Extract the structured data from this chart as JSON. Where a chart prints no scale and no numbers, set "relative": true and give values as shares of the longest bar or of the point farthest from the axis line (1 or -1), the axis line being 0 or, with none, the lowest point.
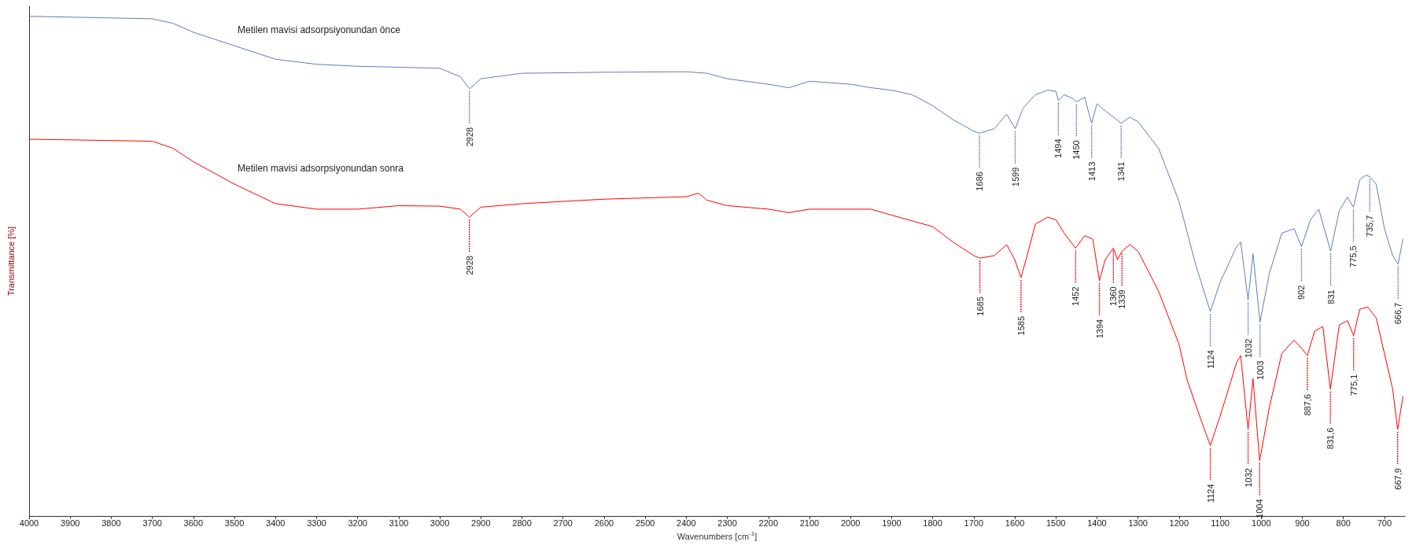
{
  "chart_data": {
    "type": "line",
    "relative": true,
    "xlabel": "Wavenumbers [cm$^{-1}$]",
    "ylabel": "Transmittance [%]",
    "xlim": [
      4000,
      650
    ],
    "xticks": [
      4000,
      3900,
      3800,
      3700,
      3600,
      3500,
      3400,
      3300,
      3200,
      3100,
      3000,
      2900,
      2800,
      2700,
      2600,
      2500,
      2400,
      2300,
      2200,
      2100,
      2000,
      1900,
      1800,
      1700,
      1600,
      1500,
      1400,
      1300,
      1200,
      1100,
      1000,
      900,
      800,
      700
    ],
    "grid": false,
    "legend": false,
    "marker": "none",
    "line_style": "solid",
    "series": [
      {
        "name": "Metilen mavisi adsorpsiyonundan önce",
        "color": "#5b7dbf",
        "x": [
          4000,
          3700,
          3650,
          3600,
          3500,
          3400,
          3300,
          3200,
          3000,
          2950,
          2928,
          2900,
          2800,
          2600,
          2400,
          2350,
          2300,
          2200,
          2150,
          2100,
          2000,
          1950,
          1900,
          1850,
          1800,
          1750,
          1700,
          1686,
          1650,
          1620,
          1599,
          1580,
          1550,
          1520,
          1500,
          1494,
          1480,
          1460,
          1450,
          1430,
          1413,
          1400,
          1380,
          1341,
          1320,
          1300,
          1250,
          1200,
          1160,
          1124,
          1100,
          1060,
          1050,
          1032,
          1020,
          1003,
          980,
          950,
          920,
          902,
          880,
          860,
          831,
          810,
          790,
          775.5,
          760,
          745,
          735.7,
          720,
          700,
          680,
          666.7,
          655
        ],
        "values": [
          1.0,
          0.995,
          0.986,
          0.968,
          0.941,
          0.914,
          0.904,
          0.9,
          0.896,
          0.879,
          0.855,
          0.875,
          0.886,
          0.888,
          0.889,
          0.886,
          0.875,
          0.864,
          0.857,
          0.87,
          0.864,
          0.857,
          0.852,
          0.843,
          0.821,
          0.793,
          0.77,
          0.766,
          0.775,
          0.804,
          0.775,
          0.816,
          0.843,
          0.852,
          0.85,
          0.832,
          0.843,
          0.836,
          0.829,
          0.838,
          0.786,
          0.825,
          0.811,
          0.786,
          0.798,
          0.789,
          0.736,
          0.629,
          0.504,
          0.409,
          0.468,
          0.539,
          0.548,
          0.432,
          0.525,
          0.388,
          0.486,
          0.566,
          0.575,
          0.539,
          0.593,
          0.614,
          0.53,
          0.611,
          0.638,
          0.618,
          0.673,
          0.682,
          0.679,
          0.664,
          0.575,
          0.521,
          0.504,
          0.554
        ]
      },
      {
        "name": "Metilen mavisi adsorpsiyonundan sonra",
        "color": "#ff0000",
        "x": [
          4000,
          3700,
          3650,
          3600,
          3500,
          3400,
          3300,
          3200,
          3100,
          3000,
          2950,
          2928,
          2900,
          2800,
          2600,
          2400,
          2370,
          2350,
          2300,
          2200,
          2150,
          2100,
          2000,
          1950,
          1900,
          1800,
          1750,
          1700,
          1685,
          1650,
          1620,
          1600,
          1585,
          1570,
          1550,
          1520,
          1500,
          1480,
          1452,
          1430,
          1410,
          1394,
          1380,
          1360,
          1350,
          1339,
          1320,
          1300,
          1250,
          1200,
          1180,
          1150,
          1124,
          1100,
          1060,
          1050,
          1032,
          1020,
          1004,
          980,
          950,
          920,
          900,
          887.6,
          870,
          850,
          831.6,
          810,
          790,
          775.1,
          760,
          740,
          720,
          700,
          680,
          667.9,
          655
        ],
        "values": [
          0.754,
          0.75,
          0.736,
          0.709,
          0.664,
          0.625,
          0.614,
          0.614,
          0.621,
          0.62,
          0.614,
          0.598,
          0.618,
          0.625,
          0.634,
          0.639,
          0.646,
          0.632,
          0.621,
          0.614,
          0.607,
          0.614,
          0.614,
          0.614,
          0.602,
          0.579,
          0.548,
          0.521,
          0.516,
          0.521,
          0.543,
          0.513,
          0.477,
          0.521,
          0.584,
          0.598,
          0.593,
          0.566,
          0.536,
          0.561,
          0.554,
          0.471,
          0.513,
          0.536,
          0.513,
          0.53,
          0.543,
          0.53,
          0.45,
          0.343,
          0.271,
          0.2,
          0.141,
          0.2,
          0.307,
          0.321,
          0.173,
          0.275,
          0.111,
          0.218,
          0.325,
          0.352,
          0.334,
          0.321,
          0.37,
          0.379,
          0.254,
          0.382,
          0.391,
          0.361,
          0.414,
          0.418,
          0.396,
          0.325,
          0.254,
          0.173,
          0.239
        ]
      }
    ],
    "annotations": [
      {
        "text": "2928",
        "x": 2928,
        "y": 0.855
      },
      {
        "text": "1686",
        "x": 1686,
        "y": 0.766
      },
      {
        "text": "1599",
        "x": 1599,
        "y": 0.775
      },
      {
        "text": "1494",
        "x": 1494,
        "y": 0.832
      },
      {
        "text": "1450",
        "x": 1450,
        "y": 0.829
      },
      {
        "text": "1413",
        "x": 1413,
        "y": 0.786
      },
      {
        "text": "1341",
        "x": 1341,
        "y": 0.786
      },
      {
        "text": "1124",
        "x": 1124,
        "y": 0.409
      },
      {
        "text": "1032",
        "x": 1032,
        "y": 0.432
      },
      {
        "text": "1003",
        "x": 1003,
        "y": 0.388
      },
      {
        "text": "902",
        "x": 902,
        "y": 0.539
      },
      {
        "text": "831",
        "x": 831,
        "y": 0.53
      },
      {
        "text": "775,5",
        "x": 775.5,
        "y": 0.618
      },
      {
        "text": "735,7",
        "x": 735.7,
        "y": 0.679
      },
      {
        "text": "666,7",
        "x": 666.7,
        "y": 0.504
      },
      {
        "text": "2928",
        "x": 2928,
        "y": 0.598
      },
      {
        "text": "1685",
        "x": 1685,
        "y": 0.516
      },
      {
        "text": "1585",
        "x": 1585,
        "y": 0.477
      },
      {
        "text": "1452",
        "x": 1452,
        "y": 0.536
      },
      {
        "text": "1394",
        "x": 1394,
        "y": 0.471
      },
      {
        "text": "1360",
        "x": 1360,
        "y": 0.536
      },
      {
        "text": "1339",
        "x": 1339,
        "y": 0.53
      },
      {
        "text": "1124",
        "x": 1124,
        "y": 0.141
      },
      {
        "text": "1032",
        "x": 1032,
        "y": 0.173
      },
      {
        "text": "1004",
        "x": 1004,
        "y": 0.111
      },
      {
        "text": "887,6",
        "x": 887.6,
        "y": 0.321
      },
      {
        "text": "831,6",
        "x": 831.6,
        "y": 0.254
      },
      {
        "text": "775,1",
        "x": 775.1,
        "y": 0.361
      },
      {
        "text": "667,9",
        "x": 667.9,
        "y": 0.173
      }
    ]
  }
}
